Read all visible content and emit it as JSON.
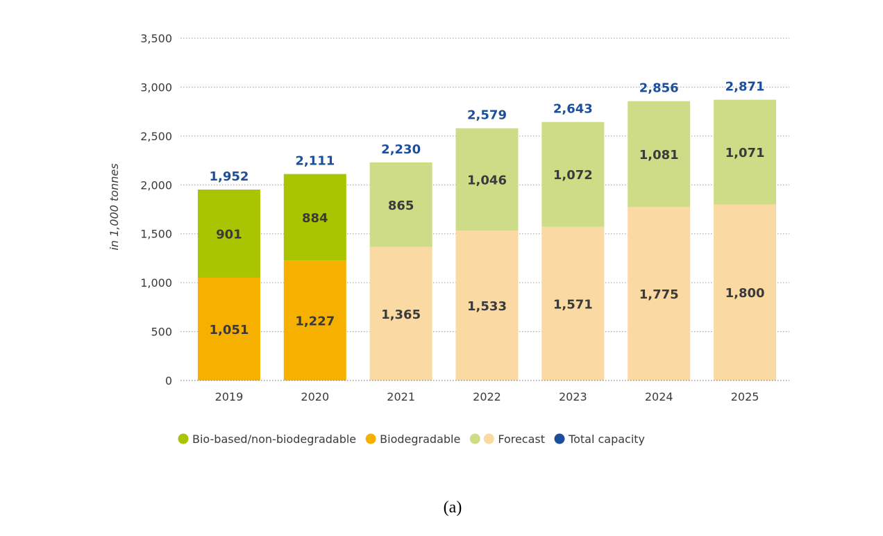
{
  "chart_data": {
    "type": "bar",
    "stacked": true,
    "categories": [
      "2019",
      "2020",
      "2021",
      "2022",
      "2023",
      "2024",
      "2025"
    ],
    "forecast_from": "2021",
    "series": [
      {
        "name": "Biodegradable",
        "values": [
          1051,
          1227,
          1365,
          1533,
          1571,
          1775,
          1800
        ]
      },
      {
        "name": "Bio-based/non-biodegradable",
        "values": [
          901,
          884,
          865,
          1046,
          1072,
          1081,
          1071
        ]
      }
    ],
    "totals": [
      1952,
      2111,
      2230,
      2579,
      2643,
      2856,
      2871
    ],
    "segment_labels": {
      "bottom": [
        "1,051",
        "1,227",
        "1,365",
        "1,533",
        "1,571",
        "1,775",
        "1,800"
      ],
      "top": [
        "901",
        "884",
        "865",
        "1,046",
        "1,072",
        "1,081",
        "1,071"
      ]
    },
    "total_labels": [
      "1,952",
      "2,111",
      "2,230",
      "2,579",
      "2,643",
      "2,856",
      "2,871"
    ],
    "yticks": [
      0,
      500,
      1000,
      1500,
      2000,
      2500,
      3000,
      3500
    ],
    "ytick_labels": [
      "0",
      "500",
      "1,000",
      "1,500",
      "2,000",
      "2,500",
      "3,000",
      "3,500"
    ],
    "ylim": [
      0,
      3500
    ],
    "ylabel": "in 1,000 tonnes",
    "xlabel": "",
    "grid": "horizontal dotted",
    "legend_position": "bottom",
    "legend": [
      {
        "label": "Bio-based/non-biodegradable",
        "colors": [
          "#a9c400"
        ]
      },
      {
        "label": "Biodegradable",
        "colors": [
          "#f6b000"
        ]
      },
      {
        "label": "Forecast",
        "colors": [
          "#cfdc87",
          "#fad9a2"
        ]
      },
      {
        "label": "Total capacity",
        "colors": [
          "#1b4f9c"
        ]
      }
    ],
    "colors": {
      "bio_based": "#a9c400",
      "biodegradable": "#f6b000",
      "forecast_bio_based": "#cfdc87",
      "forecast_biodegradable": "#fad9a2",
      "total": "#1b4f9c"
    }
  },
  "caption": "(a)"
}
